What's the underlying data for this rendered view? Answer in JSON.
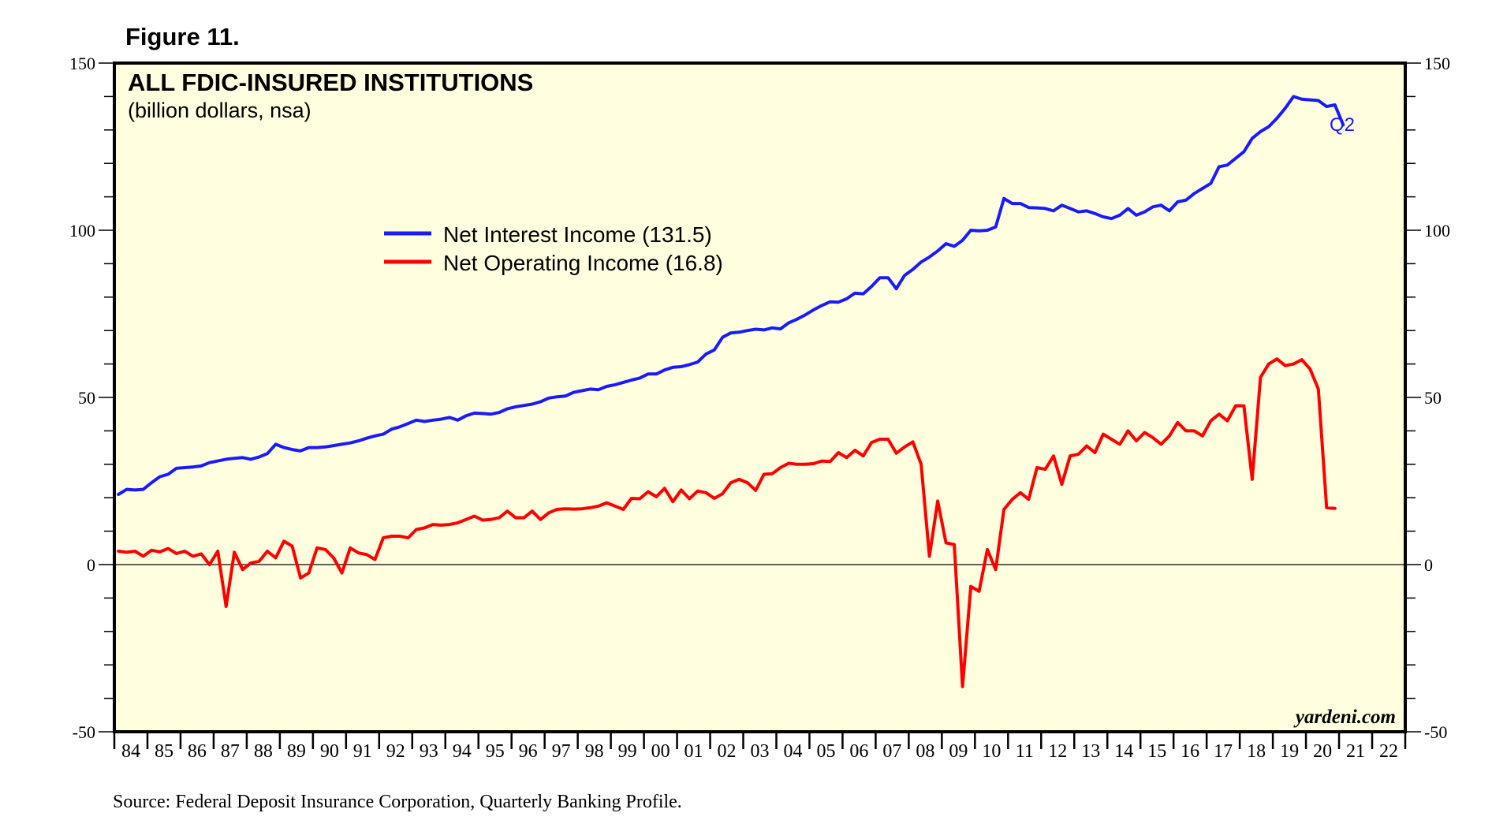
{
  "figure_label": "Figure 11.",
  "watermark": "yardeni.com",
  "source": "Source: Federal Deposit Insurance Corporation, Quarterly Banking Profile.",
  "colors": {
    "plot_bg": "#ffffe0",
    "nii": "#1a1aff",
    "noi": "#ff0000"
  },
  "chart_data": {
    "type": "line",
    "title": "ALL FDIC-INSURED INSTITUTIONS",
    "subtitle": "(billion dollars, nsa)",
    "ylim": [
      -50,
      150
    ],
    "yticks": [
      -50,
      0,
      50,
      100,
      150
    ],
    "ytick_labels": [
      "-50",
      "0",
      "50",
      "100",
      "150"
    ],
    "xlim": [
      1984,
      2023
    ],
    "year_labels": [
      "84",
      "85",
      "86",
      "87",
      "88",
      "89",
      "90",
      "91",
      "92",
      "93",
      "94",
      "95",
      "96",
      "97",
      "98",
      "99",
      "00",
      "01",
      "02",
      "03",
      "04",
      "05",
      "06",
      "07",
      "08",
      "09",
      "10",
      "11",
      "12",
      "13",
      "14",
      "15",
      "16",
      "17",
      "18",
      "19",
      "20",
      "21",
      "22"
    ],
    "last_point_label": "Q2",
    "series": [
      {
        "name": "Net Interest Income",
        "legend": "Net Interest Income (131.5)",
        "color": "#1a1aff",
        "x_start": 1984.125,
        "x_step": 0.25,
        "values": [
          21,
          22.5,
          22.3,
          22.5,
          24.5,
          26.3,
          27,
          28.8,
          29,
          29.2,
          29.5,
          30.5,
          31,
          31.5,
          31.8,
          32,
          31.5,
          32.2,
          33.2,
          36,
          35,
          34.4,
          34,
          35,
          35,
          35.2,
          35.6,
          36,
          36.4,
          37,
          37.8,
          38.5,
          39,
          40.5,
          41.2,
          42.2,
          43.2,
          42.8,
          43.2,
          43.5,
          44,
          43.2,
          44.5,
          45.3,
          45.2,
          45,
          45.5,
          46.6,
          47.2,
          47.6,
          48,
          48.7,
          49.8,
          50.2,
          50.4,
          51.5,
          52,
          52.5,
          52.3,
          53.3,
          53.8,
          54.5,
          55.2,
          55.8,
          57,
          57,
          58.2,
          59,
          59.2,
          59.8,
          60.6,
          63,
          64.2,
          68,
          69.3,
          69.5,
          70,
          70.4,
          70.2,
          70.8,
          70.5,
          72.3,
          73.4,
          74.7,
          76.2,
          77.5,
          78.6,
          78.5,
          79.5,
          81.2,
          81,
          83.2,
          85.8,
          85.8,
          82.5,
          86.5,
          88.3,
          90.5,
          92,
          93.8,
          96,
          95.2,
          97,
          100,
          99.8,
          100,
          101,
          109.5,
          108,
          108,
          106.8,
          106.7,
          106.5,
          105.8,
          107.5,
          106.5,
          105.5,
          105.8,
          105,
          104,
          103.5,
          104.5,
          106.5,
          104.5,
          105.5,
          107,
          107.5,
          105.8,
          108.5,
          109,
          111,
          112.5,
          114,
          119,
          119.5,
          121.5,
          123.5,
          127.5,
          129.5,
          131,
          133.5,
          136.5,
          140,
          139.2,
          139,
          138.8,
          137,
          137.5,
          131.5
        ]
      },
      {
        "name": "Net Operating Income",
        "legend": "Net Operating Income (16.8)",
        "color": "#ff0000",
        "x_start": 1984.125,
        "x_step": 0.25,
        "values": [
          4,
          3.7,
          4,
          2.5,
          4.3,
          3.8,
          4.8,
          3.3,
          4,
          2.5,
          3.2,
          0,
          4,
          -12.5,
          3.7,
          -1.5,
          0.5,
          1,
          4,
          2,
          7,
          5.5,
          -4,
          -2.5,
          5,
          4.5,
          2,
          -2.5,
          5,
          3.5,
          3,
          1.5,
          8,
          8.5,
          8.5,
          8,
          10.5,
          11,
          12,
          11.8,
          12,
          12.5,
          13.5,
          14.5,
          13.3,
          13.5,
          14,
          16,
          14,
          14,
          16,
          13.5,
          15.5,
          16.5,
          16.7,
          16.6,
          16.7,
          17,
          17.5,
          18.5,
          17.5,
          16.5,
          19.8,
          19.7,
          21.8,
          20.3,
          22.8,
          18.8,
          22.3,
          19.7,
          22,
          21.5,
          19.8,
          21.2,
          24.5,
          25.5,
          24.5,
          22.2,
          27,
          27.2,
          29,
          30.3,
          30,
          30,
          30.2,
          31,
          30.8,
          33.5,
          32,
          34.2,
          32.5,
          36.5,
          37.5,
          37.5,
          33.3,
          35.2,
          36.7,
          30,
          2.5,
          19,
          6.5,
          6,
          -36.5,
          -6.5,
          -8,
          4.5,
          -1.5,
          16.5,
          19.5,
          21.5,
          19.5,
          29,
          28.5,
          32.5,
          24,
          32.5,
          33,
          35.5,
          33.5,
          39,
          37.5,
          36,
          40,
          37,
          39.5,
          38,
          36,
          38.5,
          42.5,
          40,
          40,
          38.5,
          43,
          45,
          43,
          47.5,
          47.5,
          25.5,
          56,
          60,
          61.5,
          59.5,
          60,
          61.3,
          58.5,
          52.5,
          17,
          16.8
        ]
      }
    ]
  }
}
